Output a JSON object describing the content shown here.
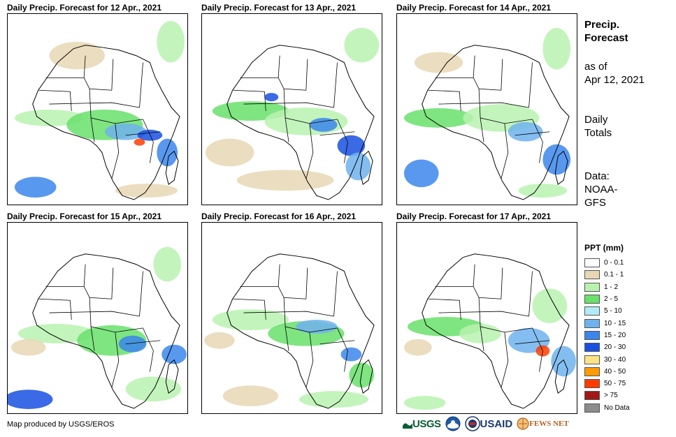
{
  "panels": [
    {
      "title": "Daily Precip. Forecast for 12 Apr., 2021"
    },
    {
      "title": "Daily Precip. Forecast for 13 Apr., 2021"
    },
    {
      "title": "Daily Precip. Forecast for 14 Apr., 2021"
    },
    {
      "title": "Daily Precip. Forecast for 15 Apr., 2021"
    },
    {
      "title": "Daily Precip. Forecast for 16 Apr., 2021"
    },
    {
      "title": "Daily Precip. Forecast for 17 Apr., 2021"
    }
  ],
  "info": {
    "title_line1": "Precip.",
    "title_line2": "Forecast",
    "asof_line1": "as of",
    "asof_line2": "Apr 12, 2021",
    "totals_line1": "Daily",
    "totals_line2": "Totals",
    "data_line1": "Data:",
    "data_line2": "NOAA-",
    "data_line3": "GFS"
  },
  "legend": {
    "title": "PPT (mm)",
    "items": [
      {
        "label": "0 - 0.1",
        "color": "#ffffff"
      },
      {
        "label": "0.1 - 1",
        "color": "#e8d7b4"
      },
      {
        "label": "1 - 2",
        "color": "#b9f2b0"
      },
      {
        "label": "2 - 5",
        "color": "#68e06b"
      },
      {
        "label": "5 - 10",
        "color": "#b1ecf5"
      },
      {
        "label": "10 - 15",
        "color": "#6fb3ee"
      },
      {
        "label": "15 - 20",
        "color": "#3b86ec"
      },
      {
        "label": "20 - 30",
        "color": "#1850e0"
      },
      {
        "label": "30 - 40",
        "color": "#ffe485"
      },
      {
        "label": "40 - 50",
        "color": "#ff9b00"
      },
      {
        "label": "50 - 75",
        "color": "#ff3c00"
      },
      {
        "label": "> 75",
        "color": "#a01818"
      },
      {
        "label": "No Data",
        "color": "#8c8c8c"
      }
    ]
  },
  "footer": {
    "credit": "Map produced by USGS/EROS"
  },
  "logos": {
    "usgs": "USGS",
    "usaid": "USAID",
    "fews": "FEWS NET"
  }
}
